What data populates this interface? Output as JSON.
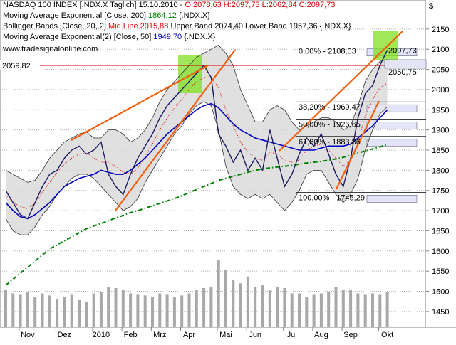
{
  "chart_data": {
    "type": "line",
    "header": {
      "title": "NASDAQ 100 INDEX [.NDX.X  Taglich] 15.10.2010 -",
      "ohlc": "O:2078,63 H:2097,73 L:2062,84 C:2097,73",
      "website": "www.tradesignalonline.com",
      "currency": "$"
    },
    "legend": [
      {
        "name": "Moving Average Exponential [Close, 200]",
        "value": "1864,12",
        "suffix": "{.NDX.X}",
        "color": "#008000"
      },
      {
        "name": "Bollinger Bands [Close, 20, 2]",
        "value": "Mid Line 2015,88",
        "suffix": "Upper Band 2074,40 Lower Band 1957,36 {.NDX.X}",
        "color": "#e00000"
      },
      {
        "name": "Moving Average Exponential(2) [Close, 50]",
        "value": "1949,70",
        "suffix": "{.NDX.X}",
        "color": "#0000c0"
      }
    ],
    "categories": [
      null,
      null,
      null,
      "Nov",
      null,
      null,
      null,
      null,
      "Dez",
      null,
      null,
      null,
      null,
      "2010",
      null,
      null,
      null,
      "Feb",
      null,
      null,
      null,
      "Mrz",
      null,
      null,
      null,
      "Apr",
      null,
      null,
      null,
      null,
      "Mai",
      null,
      null,
      null,
      "Jun",
      null,
      null,
      null,
      null,
      "Jul",
      null,
      null,
      null,
      "Aug",
      null,
      null,
      null,
      "Sep",
      null,
      null,
      null,
      null,
      "Okt"
    ],
    "series": [
      {
        "color": "#1a1a60",
        "width": 1.4,
        "values": [
          1750,
          1720,
          1690,
          1680,
          1720,
          1760,
          1790,
          1800,
          1830,
          1850,
          1860,
          1840,
          1850,
          1870,
          1790,
          1760,
          1740,
          1790,
          1830,
          1860,
          1890,
          1930,
          1960,
          1980,
          2000,
          2020,
          2040,
          2060,
          2030,
          1890,
          1860,
          1820,
          1850,
          1800,
          1830,
          1800,
          1900,
          1830,
          1760,
          1790,
          1840,
          1880,
          1860,
          1890,
          1840,
          1790,
          1760,
          1830,
          1930,
          1990,
          2010,
          2060,
          2097.73
        ]
      },
      {
        "name": "Moving Average Exponential [Close, 200]",
        "color": "#008000",
        "width": 2,
        "dash": "6 3 1.5 3",
        "values": [
          1515,
          1530,
          1545,
          1560,
          1575,
          1590,
          1605,
          1615,
          1625,
          1635,
          1645,
          1655,
          1662,
          1668,
          1675,
          1682,
          1688,
          1695,
          1700,
          1706,
          1712,
          1718,
          1724,
          1730,
          1737,
          1745,
          1752,
          1760,
          1767,
          1775,
          1780,
          1785,
          1790,
          1795,
          1800,
          1803,
          1806,
          1808,
          1810,
          1812,
          1815,
          1818,
          1820,
          1822,
          1825,
          1828,
          1832,
          1838,
          1843,
          1848,
          1853,
          1858,
          1864.12
        ]
      },
      {
        "name": "Moving Average Exponential(2) [Close, 50]",
        "color": "#0000c0",
        "width": 1.6,
        "values": [
          1720,
          1700,
          1685,
          1680,
          1690,
          1705,
          1720,
          1740,
          1760,
          1770,
          1780,
          1785,
          1790,
          1800,
          1795,
          1790,
          1790,
          1800,
          1815,
          1830,
          1850,
          1870,
          1890,
          1905,
          1920,
          1935,
          1950,
          1960,
          1965,
          1955,
          1935,
          1915,
          1900,
          1890,
          1880,
          1875,
          1870,
          1865,
          1860,
          1855,
          1850,
          1850,
          1850,
          1855,
          1860,
          1860,
          1860,
          1865,
          1880,
          1895,
          1910,
          1930,
          1949.7
        ]
      },
      {
        "color": "#303030",
        "width": 0.8,
        "values": [
          1800,
          1790,
          1780,
          1770,
          1775,
          1800,
          1830,
          1850,
          1870,
          1880,
          1890,
          1895,
          1880,
          1880,
          1900,
          1900,
          1890,
          1870,
          1880,
          1900,
          1930,
          1970,
          2000,
          2020,
          2040,
          2060,
          2080,
          2090,
          2100,
          2110,
          2090,
          2060,
          2000,
          1960,
          1920,
          1920,
          1950,
          1960,
          1950,
          1920,
          1900,
          1910,
          1920,
          1930,
          1930,
          1920,
          1900,
          1910,
          1960,
          2020,
          2050,
          2070,
          2074.4
        ]
      },
      {
        "color": "#e00000",
        "width": 1,
        "dash": "1 2",
        "values": [
          1740,
          1720,
          1710,
          1705,
          1718,
          1745,
          1770,
          1795,
          1815,
          1830,
          1840,
          1843,
          1830,
          1820,
          1820,
          1810,
          1795,
          1790,
          1805,
          1835,
          1865,
          1900,
          1930,
          1955,
          1975,
          2000,
          2020,
          2030,
          2030,
          2005,
          1950,
          1910,
          1870,
          1845,
          1830,
          1825,
          1845,
          1840,
          1825,
          1820,
          1825,
          1850,
          1860,
          1865,
          1850,
          1830,
          1810,
          1825,
          1870,
          1935,
          1975,
          2005,
          2015.88
        ]
      },
      {
        "color": "#303030",
        "width": 0.8,
        "values": [
          1680,
          1650,
          1640,
          1640,
          1660,
          1690,
          1710,
          1740,
          1760,
          1780,
          1790,
          1790,
          1780,
          1760,
          1740,
          1720,
          1700,
          1710,
          1730,
          1770,
          1800,
          1830,
          1860,
          1890,
          1910,
          1940,
          1960,
          1970,
          1960,
          1900,
          1810,
          1760,
          1740,
          1730,
          1740,
          1730,
          1740,
          1720,
          1700,
          1720,
          1750,
          1790,
          1800,
          1800,
          1770,
          1740,
          1720,
          1740,
          1780,
          1850,
          1900,
          1940,
          1957.36
        ]
      }
    ],
    "volume": {
      "color": "#a8a8a8",
      "values": [
        55,
        50,
        48,
        52,
        45,
        50,
        47,
        42,
        45,
        48,
        40,
        38,
        50,
        52,
        60,
        58,
        55,
        50,
        48,
        47,
        45,
        50,
        48,
        45,
        47,
        50,
        55,
        58,
        60,
        100,
        85,
        70,
        65,
        75,
        60,
        62,
        55,
        60,
        58,
        50,
        50,
        45,
        48,
        50,
        52,
        60,
        55,
        55,
        50,
        48,
        50,
        48,
        52
      ]
    },
    "fibonacci": [
      {
        "value": 2108.03,
        "label": "0,00% - 2108,03"
      },
      {
        "value": 1969.47,
        "label": "38,20% - 1969,47"
      },
      {
        "value": 1926.65,
        "label": "50,00% - 1926,65"
      },
      {
        "value": 1883.86,
        "label": "61,80% - 1883,86"
      },
      {
        "value": 1745.29,
        "label": "100,00% - 1745,29"
      }
    ],
    "markers": [
      {
        "value": 2059.82,
        "label": "2059,82"
      },
      {
        "value": 2097.73,
        "label": "2097,73"
      },
      {
        "value": 2050.75,
        "label": "2050,75"
      }
    ],
    "ylim": [
      1411,
      2222
    ],
    "yticks": [
      1450,
      1500,
      1550,
      1600,
      1650,
      1700,
      1750,
      1800,
      1850,
      1900,
      1950,
      2000,
      2050,
      2100,
      2150
    ],
    "grid": true
  }
}
